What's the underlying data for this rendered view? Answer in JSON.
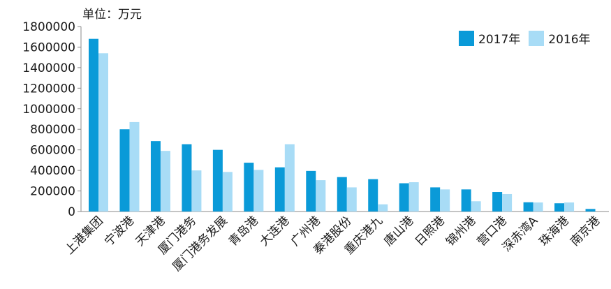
{
  "chart_data": {
    "type": "bar",
    "unit_label": "单位：万元",
    "categories": [
      "上港集团",
      "宁波港",
      "天津港",
      "厦门港务",
      "厦门港务发展",
      "青岛港",
      "大连港",
      "广州港",
      "秦港股份",
      "重庆港九",
      "唐山港",
      "日照港",
      "锦州港",
      "营口港",
      "深赤湾A",
      "珠海港",
      "南京港"
    ],
    "series": [
      {
        "name": "2017年",
        "color": "#0a9ad8",
        "values": [
          1680000,
          800000,
          685000,
          655000,
          600000,
          475000,
          430000,
          395000,
          335000,
          315000,
          275000,
          235000,
          215000,
          190000,
          90000,
          80000,
          25000
        ]
      },
      {
        "name": "2016年",
        "color": "#a8dcf6",
        "values": [
          1540000,
          870000,
          590000,
          400000,
          385000,
          405000,
          655000,
          305000,
          235000,
          70000,
          285000,
          215000,
          100000,
          170000,
          88000,
          88000,
          0
        ]
      }
    ],
    "yticks": [
      "0",
      "200000",
      "400000",
      "600000",
      "800000",
      "1000000",
      "1200000",
      "1400000",
      "1600000",
      "1800000"
    ],
    "ylim": [
      0,
      1800000
    ],
    "legend_position": "top-right",
    "grid": false
  }
}
